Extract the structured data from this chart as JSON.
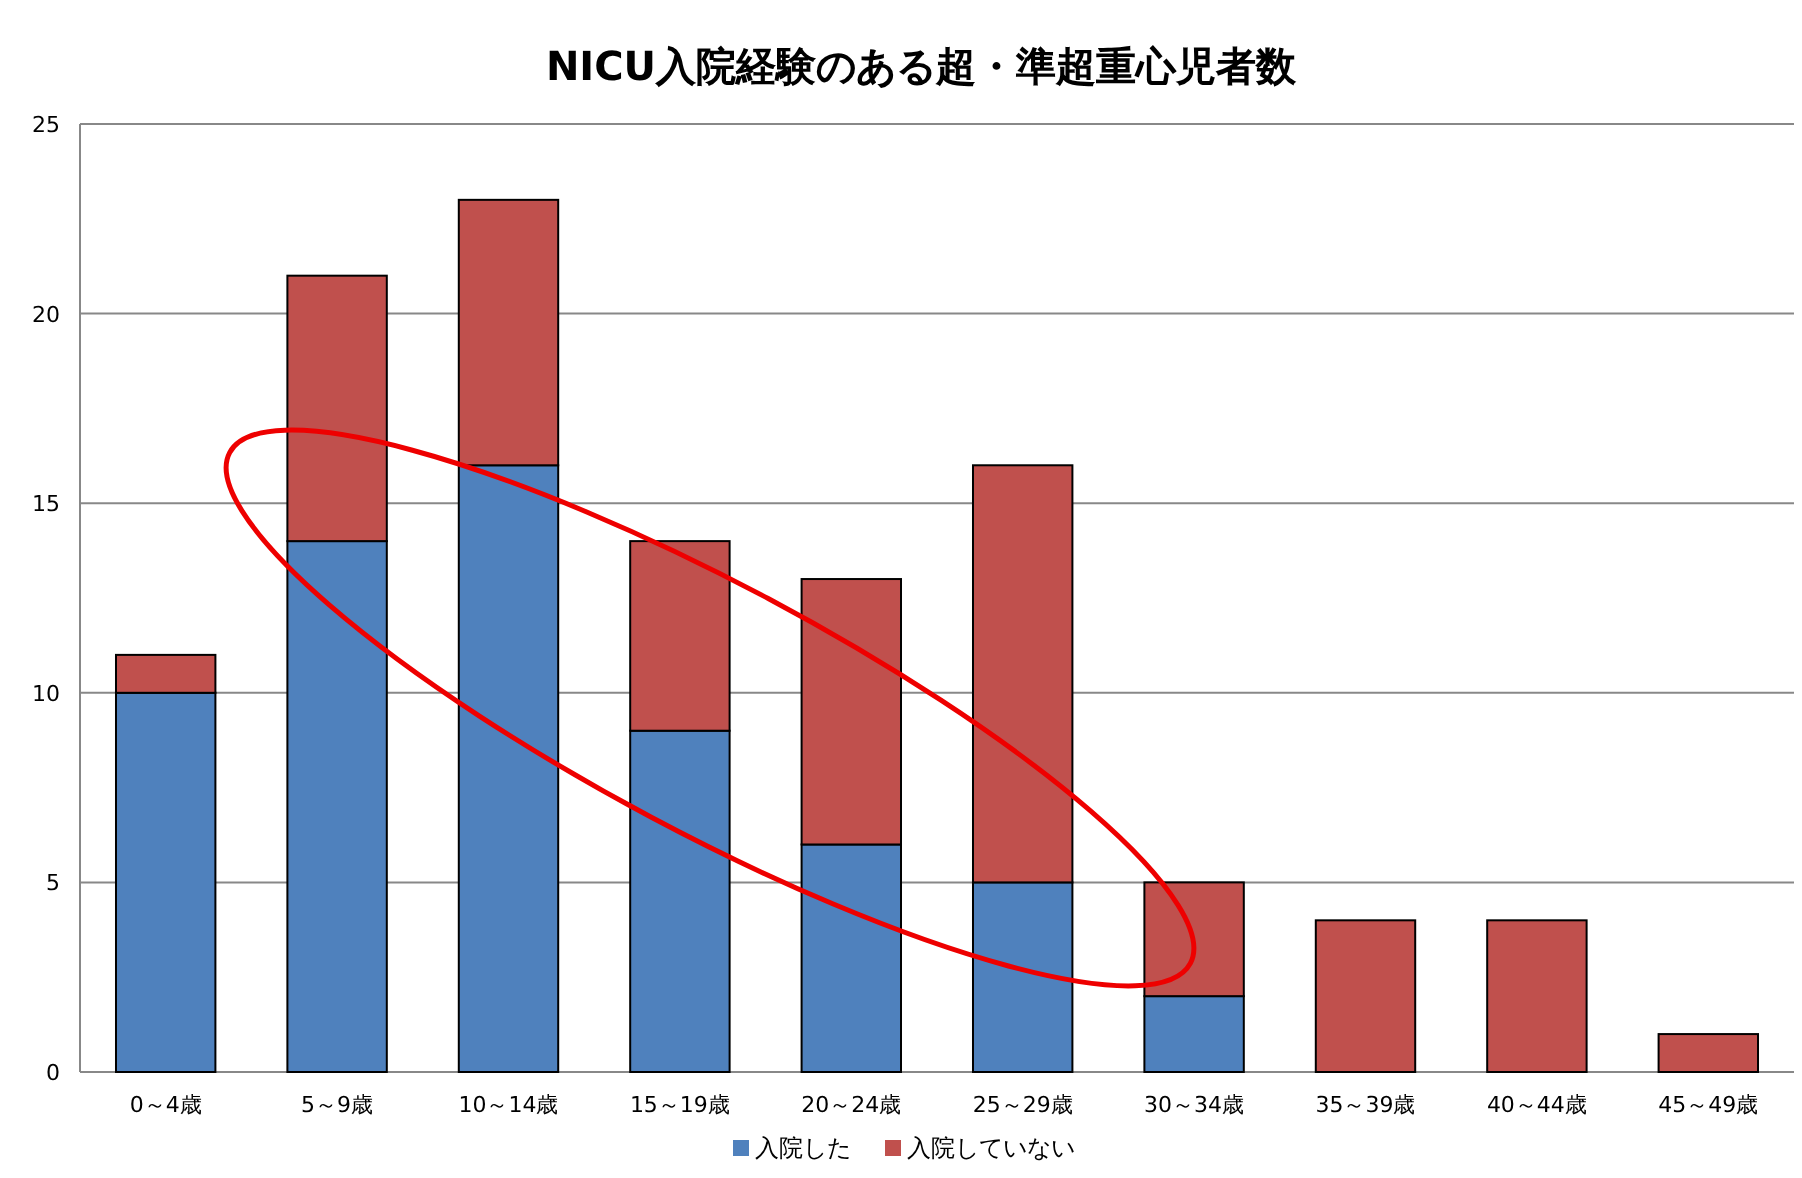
{
  "chart_data": {
    "type": "bar",
    "title": "NICU入院経験のある超・準超重心児者数",
    "stacked": true,
    "categories": [
      "0～4歳",
      "5～9歳",
      "10～14歳",
      "15～19歳",
      "20～24歳",
      "25～29歳",
      "30～34歳",
      "35～39歳",
      "40～44歳",
      "45～49歳"
    ],
    "series": [
      {
        "name": "入院した",
        "color": "#4f81bd",
        "values": [
          10,
          14,
          16,
          9,
          6,
          5,
          2,
          0,
          0,
          0
        ]
      },
      {
        "name": "入院していない",
        "color": "#c0504d",
        "values": [
          1,
          7,
          7,
          5,
          7,
          11,
          3,
          4,
          4,
          1
        ]
      }
    ],
    "ylim": [
      0,
      25
    ],
    "yticks": [
      0,
      5,
      10,
      15,
      20,
      25
    ],
    "grid": "y",
    "legend": "bottom"
  }
}
